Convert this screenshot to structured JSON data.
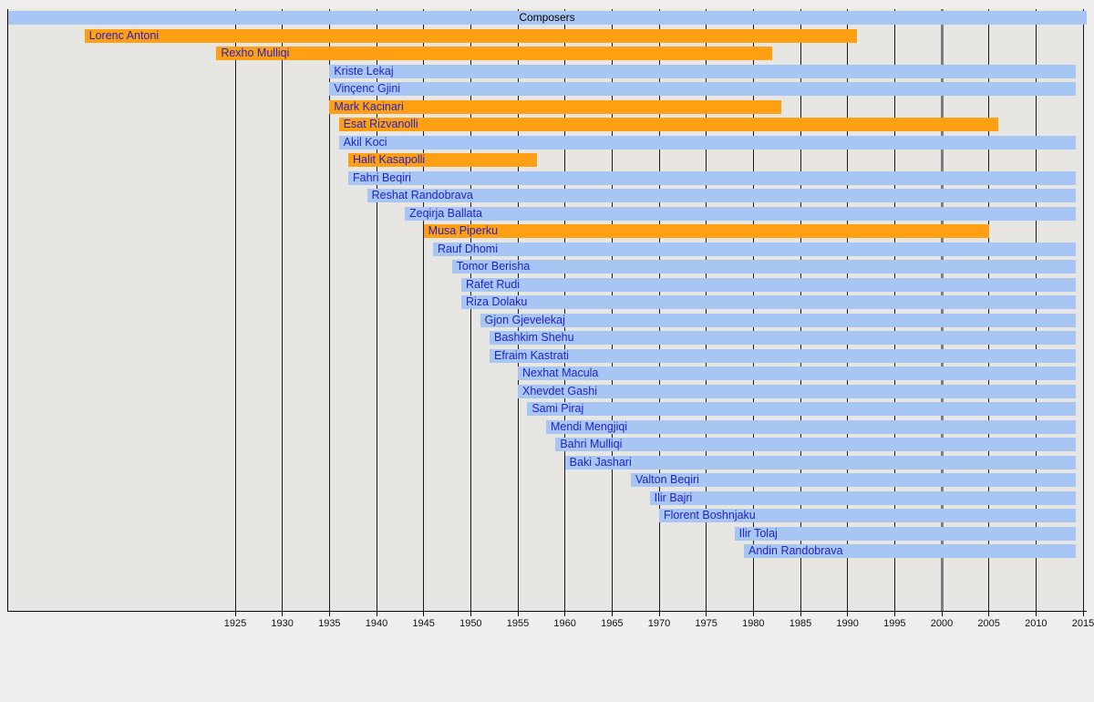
{
  "chart_data": {
    "type": "timeline",
    "title": "Composers",
    "xlabel": "",
    "ylabel": "",
    "axis": {
      "start_year": 1925,
      "end_year": 2015,
      "tick_step": 5,
      "tick_labels": [
        "1925",
        "1930",
        "1935",
        "1940",
        "1945",
        "1950",
        "1955",
        "1960",
        "1965",
        "1970",
        "1975",
        "1980",
        "1985",
        "1990",
        "1995",
        "2000",
        "2005",
        "2010",
        "2015"
      ]
    },
    "marker_line_year": 2000,
    "present_year": 2014.2,
    "grid": "on",
    "legend": "none",
    "colors": {
      "deceased_bar": "#ffa014",
      "living_bar": "#a8c6f3",
      "title_bar": "#a8c6f3",
      "label_text": "#2222c8",
      "title_text": "#000000",
      "plot_background": "#e8e6e3",
      "page_background": "#f1efee",
      "gridline": "#1a1a1a",
      "marker_line": "#7d7d7d"
    },
    "composers": [
      {
        "name": "Lorenc Antoni",
        "born": 1909,
        "died": 1991
      },
      {
        "name": "Rexho Mulliqi",
        "born": 1923,
        "died": 1982
      },
      {
        "name": "Kriste Lekaj",
        "born": 1935,
        "died": null
      },
      {
        "name": "Vinçenc Gjini",
        "born": 1935,
        "died": null
      },
      {
        "name": "Mark Kacinari",
        "born": 1935,
        "died": 1983
      },
      {
        "name": "Esat Rizvanolli",
        "born": 1936,
        "died": 2006
      },
      {
        "name": "Akil Koci",
        "born": 1936,
        "died": null
      },
      {
        "name": "Halit Kasapolli",
        "born": 1937,
        "died": 1957
      },
      {
        "name": "Fahri Beqiri",
        "born": 1937,
        "died": null
      },
      {
        "name": "Reshat Randobrava",
        "born": 1939,
        "died": null
      },
      {
        "name": "Zeqirja Ballata",
        "born": 1943,
        "died": null
      },
      {
        "name": "Musa Piperku",
        "born": 1945,
        "died": 2005
      },
      {
        "name": "Rauf Dhomi",
        "born": 1946,
        "died": null
      },
      {
        "name": "Tomor Berisha",
        "born": 1948,
        "died": null
      },
      {
        "name": "Rafet Rudi",
        "born": 1949,
        "died": null
      },
      {
        "name": "Riza Dolaku",
        "born": 1949,
        "died": null
      },
      {
        "name": "Gjon Gjevelekaj",
        "born": 1951,
        "died": null
      },
      {
        "name": "Bashkim Shehu",
        "born": 1952,
        "died": null
      },
      {
        "name": "Efraim Kastrati",
        "born": 1952,
        "died": null
      },
      {
        "name": "Nexhat Macula",
        "born": 1955,
        "died": null
      },
      {
        "name": "Xhevdet Gashi",
        "born": 1955,
        "died": null
      },
      {
        "name": "Sami Piraj",
        "born": 1956,
        "died": null
      },
      {
        "name": "Mendi Mengjiqi",
        "born": 1958,
        "died": null
      },
      {
        "name": "Bahri Mulliqi",
        "born": 1959,
        "died": null
      },
      {
        "name": "Baki Jashari",
        "born": 1960,
        "died": null
      },
      {
        "name": "Valton Beqiri",
        "born": 1967,
        "died": null
      },
      {
        "name": "Ilir Bajri",
        "born": 1969,
        "died": null
      },
      {
        "name": "Florent Boshnjaku",
        "born": 1970,
        "died": null
      },
      {
        "name": "Ilir Tolaj",
        "born": 1978,
        "died": null
      },
      {
        "name": "Andin Randobrava",
        "born": 1979,
        "died": null
      }
    ]
  }
}
